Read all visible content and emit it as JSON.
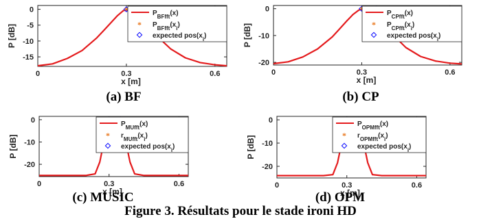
{
  "figure_caption": "Figure 3. Résultats pour le stade ironi HD",
  "colors": {
    "curve": "#e41a1c",
    "marker_est": "#e8771e",
    "marker_exp": "#1a1aff",
    "axis": "#222222"
  },
  "chart_data": [
    {
      "type": "line",
      "caption": "(a) BF",
      "xlabel": "x [m]",
      "ylabel": "P [dB]",
      "xlim": [
        0,
        0.64
      ],
      "ylim": [
        -18,
        1.2
      ],
      "xticks": [
        0,
        0.3,
        0.6
      ],
      "yticks": [
        0,
        -5,
        -10,
        -15
      ],
      "legend_position": "top-right",
      "legend": [
        {
          "main": "P",
          "sub": "BFfft",
          "tail": "(x)"
        },
        {
          "main": "P",
          "sub": "BFfft",
          "tail": "(x",
          "sub2": "i",
          "tail2": ")"
        },
        {
          "main": "expected pos(x",
          "sub": "i",
          "tail": ")"
        }
      ],
      "x": [
        0,
        0.05,
        0.1,
        0.15,
        0.2,
        0.225,
        0.25,
        0.27,
        0.29,
        0.31,
        0.325,
        0.34,
        0.36,
        0.38,
        0.4,
        0.425,
        0.45,
        0.5,
        0.55,
        0.6,
        0.64
      ],
      "y": [
        -17.8,
        -17.2,
        -15.5,
        -13,
        -9,
        -6.5,
        -4,
        -2,
        -0.4,
        -0.1,
        0,
        -0.5,
        -2.2,
        -4.5,
        -7.5,
        -10.3,
        -12.5,
        -15.3,
        -16.8,
        -17.5,
        -17.8
      ],
      "estimated_positions": [
        {
          "x": 0.3,
          "y": 0
        },
        {
          "x": 0.34,
          "y": 0
        }
      ],
      "expected_positions": [
        {
          "x": 0.3,
          "y": 0
        },
        {
          "x": 0.35,
          "y": 0
        }
      ]
    },
    {
      "type": "line",
      "caption": "(b) CP",
      "xlabel": "x [m]",
      "ylabel": "P [dB]",
      "xlim": [
        0,
        0.64
      ],
      "ylim": [
        -21,
        1.2
      ],
      "xticks": [
        0,
        0.3,
        0.6
      ],
      "yticks": [
        0,
        -10,
        -20
      ],
      "legend_position": "top-right",
      "legend": [
        {
          "main": "P",
          "sub": "CPfft",
          "tail": "(x)"
        },
        {
          "main": "P",
          "sub": "CPfft",
          "tail": "(x",
          "sub2": "i",
          "tail2": ")"
        },
        {
          "main": "expected pos(x",
          "sub": "i",
          "tail": ")"
        }
      ],
      "x": [
        0,
        0.05,
        0.1,
        0.15,
        0.2,
        0.225,
        0.25,
        0.27,
        0.29,
        0.31,
        0.325,
        0.34,
        0.36,
        0.38,
        0.4,
        0.425,
        0.45,
        0.5,
        0.55,
        0.6,
        0.64
      ],
      "y": [
        -20.5,
        -19.8,
        -18,
        -15,
        -10.5,
        -7.5,
        -4.5,
        -2.2,
        -0.5,
        -0.1,
        0,
        -0.5,
        -2.5,
        -5.2,
        -8.5,
        -11.8,
        -14.5,
        -17.8,
        -19.5,
        -20.3,
        -20.6
      ],
      "estimated_positions": [
        {
          "x": 0.3,
          "y": 0
        },
        {
          "x": 0.34,
          "y": 0
        }
      ],
      "expected_positions": [
        {
          "x": 0.3,
          "y": 0
        },
        {
          "x": 0.35,
          "y": 0
        }
      ]
    },
    {
      "type": "line",
      "caption": "(c) MUSIC",
      "xlabel": "x [m]",
      "ylabel": "P [dB]",
      "xlim": [
        0,
        0.64
      ],
      "ylim": [
        -25.5,
        1.5
      ],
      "xticks": [
        0,
        0.3,
        0.6
      ],
      "yticks": [
        0,
        -10,
        -20
      ],
      "legend_position": "top-right",
      "legend": [
        {
          "main": "P",
          "sub": "MUfft",
          "tail": "(x)"
        },
        {
          "main": "r",
          "sub": "MUfft",
          "tail": "(x",
          "sub2": "i",
          "tail2": ")"
        },
        {
          "main": "expected pos(x",
          "sub": "i",
          "tail": ")"
        }
      ],
      "x": [
        0,
        0.1,
        0.2,
        0.24,
        0.26,
        0.28,
        0.3,
        0.325,
        0.35,
        0.37,
        0.39,
        0.41,
        0.45,
        0.5,
        0.55,
        0.64
      ],
      "y": [
        -25,
        -25,
        -25,
        -24.3,
        -19,
        -9,
        0,
        -7,
        0,
        -9,
        -19,
        -24.3,
        -25,
        -25,
        -25,
        -25
      ],
      "estimated_positions": [
        {
          "x": 0.3,
          "y": 0
        },
        {
          "x": 0.35,
          "y": 0
        }
      ],
      "expected_positions": [
        {
          "x": 0.3,
          "y": 0
        },
        {
          "x": 0.35,
          "y": 0
        }
      ]
    },
    {
      "type": "line",
      "caption": "(d) OPM",
      "xlabel": "x [m]",
      "ylabel": "P [dB]",
      "xlim": [
        0,
        0.64
      ],
      "ylim": [
        -25,
        1.5
      ],
      "xticks": [
        0,
        0.3,
        0.6
      ],
      "yticks": [
        0,
        -10,
        -20
      ],
      "legend_position": "top-right",
      "legend": [
        {
          "main": "P",
          "sub": "OPMfft",
          "tail": "(x)"
        },
        {
          "main": "r",
          "sub": "OPMfft",
          "tail": "(x",
          "sub2": "i",
          "tail2": ")"
        },
        {
          "main": "expected pos(x",
          "sub": "i",
          "tail": ")"
        }
      ],
      "x": [
        0,
        0.1,
        0.2,
        0.24,
        0.26,
        0.28,
        0.3,
        0.325,
        0.35,
        0.37,
        0.39,
        0.41,
        0.45,
        0.5,
        0.55,
        0.64
      ],
      "y": [
        -24,
        -24,
        -24,
        -23.6,
        -18.5,
        -9,
        0,
        -7,
        0,
        -9,
        -18.5,
        -23.6,
        -24,
        -24,
        -24,
        -24
      ],
      "estimated_positions": [
        {
          "x": 0.3,
          "y": 0
        },
        {
          "x": 0.35,
          "y": 0
        }
      ],
      "expected_positions": [
        {
          "x": 0.3,
          "y": 0
        },
        {
          "x": 0.35,
          "y": 0
        }
      ]
    }
  ]
}
